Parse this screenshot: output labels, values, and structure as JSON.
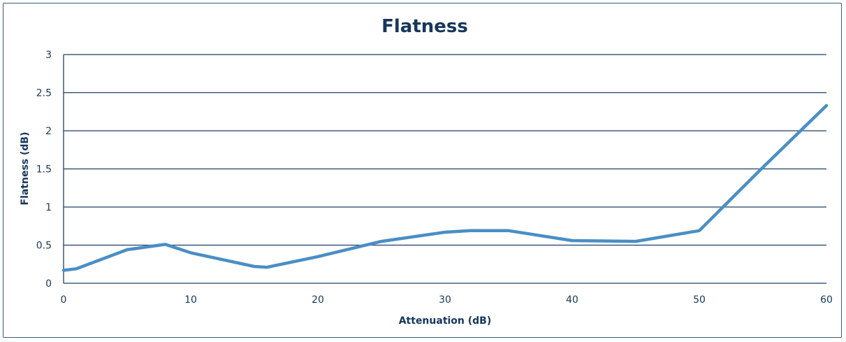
{
  "chart_data": {
    "type": "line",
    "title": "Flatness",
    "xlabel": "Attenuation (dB)",
    "ylabel": "Flatness (dB)",
    "xlim": [
      0,
      60
    ],
    "ylim": [
      0,
      3
    ],
    "x_ticks": [
      "0",
      "10",
      "20",
      "30",
      "40",
      "50",
      "60"
    ],
    "y_ticks": [
      "0",
      "0.5",
      "1",
      "1.5",
      "2",
      "2.5",
      "3"
    ],
    "grid": "horizontal",
    "legend": "none",
    "series": [
      {
        "color": "#4a8ec5",
        "x": [
          0,
          1,
          5,
          8,
          10,
          15,
          16,
          20,
          25,
          30,
          32,
          35,
          40,
          45,
          50,
          55,
          60
        ],
        "y": [
          0.17,
          0.19,
          0.44,
          0.51,
          0.4,
          0.22,
          0.21,
          0.35,
          0.55,
          0.67,
          0.69,
          0.69,
          0.56,
          0.55,
          0.69,
          1.52,
          2.33
        ]
      }
    ]
  }
}
